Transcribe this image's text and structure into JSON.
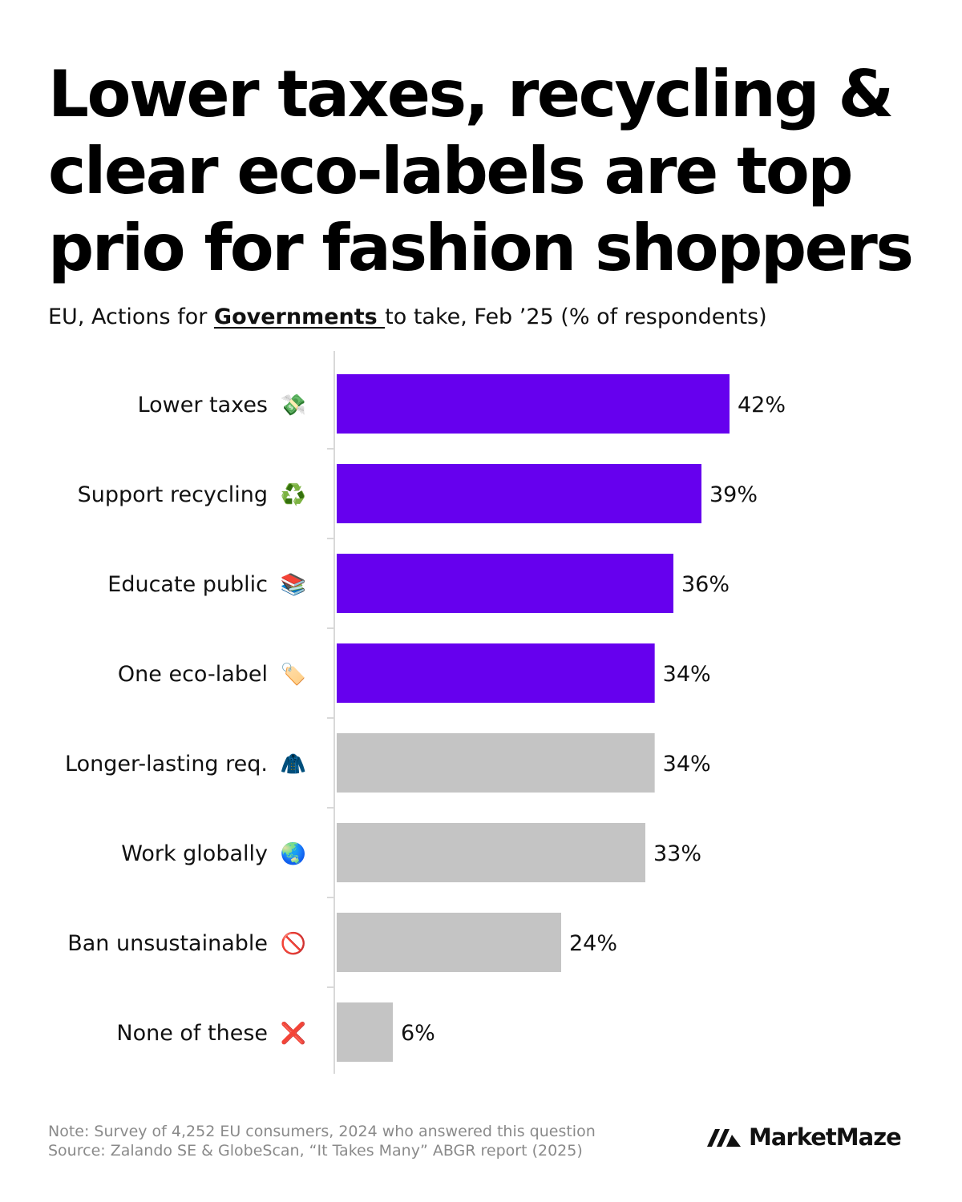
{
  "title": {
    "lines": [
      "Lower taxes, recycling &",
      "clear eco-labels are top",
      "prio for fashion shoppers"
    ]
  },
  "subtitle": {
    "before": "EU, Actions for ",
    "highlight": "Governments ",
    "after": "to take, Feb ’25 (% of respondents)"
  },
  "chart_data": {
    "type": "bar",
    "orientation": "horizontal",
    "categories": [
      "Lower taxes",
      "Support recycling",
      "Educate public",
      "One eco-label",
      "Longer-lasting req.",
      "Work globally",
      "Ban unsustainable",
      "None of these"
    ],
    "icons": [
      "💸",
      "♻️",
      "📚",
      "🏷️",
      "🧥",
      "🌏",
      "🚫",
      "❌"
    ],
    "icon_names": [
      "money-with-wings-icon",
      "recycling-icon",
      "books-icon",
      "label-tag-icon",
      "coat-icon",
      "globe-icon",
      "prohibited-icon",
      "cross-mark-icon"
    ],
    "values": [
      42,
      39,
      36,
      34,
      34,
      33,
      24,
      6
    ],
    "value_labels": [
      "42%",
      "39%",
      "36%",
      "34%",
      "34%",
      "33%",
      "24%",
      "6%"
    ],
    "highlighted": [
      true,
      true,
      true,
      true,
      false,
      false,
      false,
      false
    ],
    "highlight_color": "#6600ee",
    "muted_color": "#c4c4c4",
    "unit": "%",
    "xlim": [
      0,
      50
    ],
    "grid": false
  },
  "footer": {
    "note": "Note: Survey of 4,252 EU consumers, 2024 who answered this question",
    "source": "Source: Zalando SE & GlobeScan, “It Takes Many” ABGR report (2025)"
  },
  "brand": {
    "name": "MarketMaze"
  }
}
